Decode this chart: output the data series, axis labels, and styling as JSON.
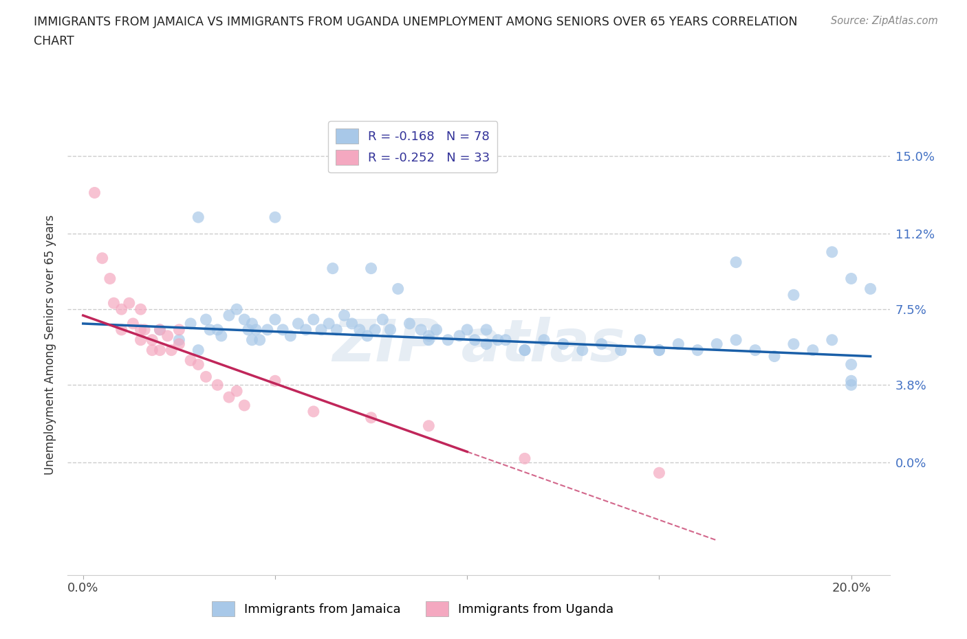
{
  "title_line1": "IMMIGRANTS FROM JAMAICA VS IMMIGRANTS FROM UGANDA UNEMPLOYMENT AMONG SENIORS OVER 65 YEARS CORRELATION",
  "title_line2": "CHART",
  "source_text": "Source: ZipAtlas.com",
  "ylabel": "Unemployment Among Seniors over 65 years",
  "xlim": [
    -0.004,
    0.21
  ],
  "ylim": [
    -0.055,
    0.17
  ],
  "yticks": [
    0.0,
    0.038,
    0.075,
    0.112,
    0.15
  ],
  "ytick_labels": [
    "0.0%",
    "3.8%",
    "7.5%",
    "11.2%",
    "15.0%"
  ],
  "xticks": [
    0.0,
    0.05,
    0.1,
    0.15,
    0.2
  ],
  "xtick_labels": [
    "0.0%",
    "",
    "",
    "",
    "20.0%"
  ],
  "r_jamaica": -0.168,
  "n_jamaica": 78,
  "r_uganda": -0.252,
  "n_uganda": 33,
  "color_jamaica": "#a8c8e8",
  "color_uganda": "#f4a8c0",
  "line_color_jamaica": "#1a5fa8",
  "line_color_uganda": "#c0265a",
  "background_color": "#ffffff",
  "jamaica_line": [
    [
      0.0,
      0.068
    ],
    [
      0.205,
      0.052
    ]
  ],
  "uganda_line": [
    [
      0.0,
      0.072
    ],
    [
      0.165,
      -0.038
    ]
  ],
  "jamaica_x": [
    0.02,
    0.025,
    0.028,
    0.03,
    0.032,
    0.033,
    0.035,
    0.036,
    0.038,
    0.04,
    0.042,
    0.043,
    0.044,
    0.044,
    0.045,
    0.046,
    0.048,
    0.05,
    0.052,
    0.054,
    0.056,
    0.058,
    0.06,
    0.062,
    0.064,
    0.066,
    0.068,
    0.07,
    0.072,
    0.074,
    0.076,
    0.078,
    0.08,
    0.082,
    0.085,
    0.088,
    0.09,
    0.092,
    0.095,
    0.098,
    0.1,
    0.102,
    0.105,
    0.108,
    0.11,
    0.115,
    0.12,
    0.125,
    0.13,
    0.135,
    0.14,
    0.145,
    0.15,
    0.155,
    0.16,
    0.165,
    0.17,
    0.175,
    0.18,
    0.185,
    0.19,
    0.195,
    0.2,
    0.205,
    0.03,
    0.05,
    0.065,
    0.075,
    0.09,
    0.105,
    0.115,
    0.15,
    0.17,
    0.185,
    0.195,
    0.2,
    0.2,
    0.2
  ],
  "jamaica_y": [
    0.065,
    0.06,
    0.068,
    0.055,
    0.07,
    0.065,
    0.065,
    0.062,
    0.072,
    0.075,
    0.07,
    0.065,
    0.06,
    0.068,
    0.065,
    0.06,
    0.065,
    0.07,
    0.065,
    0.062,
    0.068,
    0.065,
    0.07,
    0.065,
    0.068,
    0.065,
    0.072,
    0.068,
    0.065,
    0.062,
    0.065,
    0.07,
    0.065,
    0.085,
    0.068,
    0.065,
    0.062,
    0.065,
    0.06,
    0.062,
    0.065,
    0.06,
    0.058,
    0.06,
    0.06,
    0.055,
    0.06,
    0.058,
    0.055,
    0.058,
    0.055,
    0.06,
    0.055,
    0.058,
    0.055,
    0.058,
    0.06,
    0.055,
    0.052,
    0.058,
    0.055,
    0.06,
    0.09,
    0.085,
    0.12,
    0.12,
    0.095,
    0.095,
    0.06,
    0.065,
    0.055,
    0.055,
    0.098,
    0.082,
    0.103,
    0.048,
    0.04,
    0.038
  ],
  "uganda_x": [
    0.003,
    0.005,
    0.007,
    0.008,
    0.01,
    0.01,
    0.012,
    0.013,
    0.015,
    0.015,
    0.015,
    0.016,
    0.018,
    0.018,
    0.02,
    0.02,
    0.022,
    0.023,
    0.025,
    0.025,
    0.028,
    0.03,
    0.032,
    0.035,
    0.038,
    0.04,
    0.042,
    0.05,
    0.06,
    0.075,
    0.09,
    0.115,
    0.15
  ],
  "uganda_y": [
    0.132,
    0.1,
    0.09,
    0.078,
    0.075,
    0.065,
    0.078,
    0.068,
    0.075,
    0.065,
    0.06,
    0.065,
    0.06,
    0.055,
    0.065,
    0.055,
    0.062,
    0.055,
    0.065,
    0.058,
    0.05,
    0.048,
    0.042,
    0.038,
    0.032,
    0.035,
    0.028,
    0.04,
    0.025,
    0.022,
    0.018,
    0.002,
    -0.005
  ]
}
